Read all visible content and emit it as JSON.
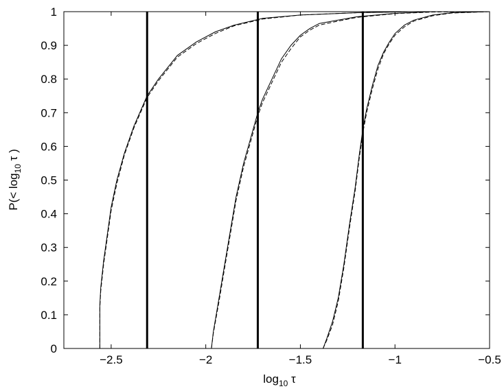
{
  "chart_data": {
    "type": "line",
    "title": "",
    "xlabel": {
      "base": "log",
      "sub": "10",
      "sym": " τ"
    },
    "ylabel": {
      "pre": "P(< log",
      "sub": "10",
      "post": " τ )"
    },
    "xlim": [
      -2.75,
      -0.5
    ],
    "ylim": [
      0,
      1
    ],
    "x_ticks": [
      -2.5,
      -2,
      -1.5,
      -1,
      -0.5
    ],
    "x_tick_labels": [
      "−2.5",
      "−2",
      "−1.5",
      "−1",
      "−0.5"
    ],
    "y_ticks": [
      0,
      0.1,
      0.2,
      0.3,
      0.4,
      0.5,
      0.6,
      0.7,
      0.8,
      0.9,
      1
    ],
    "y_tick_labels": [
      "0",
      "0.1",
      "0.2",
      "0.3",
      "0.4",
      "0.5",
      "0.6",
      "0.7",
      "0.8",
      "0.9",
      "1"
    ],
    "grid": false,
    "vertical_lines": [
      -2.31,
      -1.725,
      -1.17
    ],
    "series": [
      {
        "style": "solid",
        "x": [
          -2.56,
          -2.56,
          -2.555,
          -2.54,
          -2.52,
          -2.5,
          -2.47,
          -2.43,
          -2.38,
          -2.31,
          -2.25,
          -2.15,
          -2.05,
          -1.95,
          -1.85,
          -1.7,
          -1.5,
          -1.2,
          -0.9,
          -0.5
        ],
        "y": [
          0,
          0.13,
          0.18,
          0.26,
          0.34,
          0.42,
          0.5,
          0.58,
          0.66,
          0.75,
          0.8,
          0.87,
          0.91,
          0.94,
          0.96,
          0.98,
          0.99,
          0.997,
          1,
          1
        ]
      },
      {
        "style": "dashed",
        "x": [
          -2.56,
          -2.56,
          -2.555,
          -2.54,
          -2.52,
          -2.5,
          -2.47,
          -2.43,
          -2.38,
          -2.31,
          -2.25,
          -2.15,
          -2.05,
          -1.95,
          -1.85,
          -1.7,
          -1.5,
          -1.2,
          -0.9,
          -0.5
        ],
        "y": [
          0,
          0.12,
          0.17,
          0.25,
          0.33,
          0.41,
          0.49,
          0.575,
          0.655,
          0.745,
          0.795,
          0.865,
          0.905,
          0.935,
          0.958,
          0.978,
          0.99,
          0.997,
          1,
          1
        ]
      },
      {
        "style": "solid",
        "x": [
          -1.97,
          -1.96,
          -1.93,
          -1.9,
          -1.87,
          -1.84,
          -1.8,
          -1.76,
          -1.725,
          -1.7,
          -1.65,
          -1.6,
          -1.55,
          -1.5,
          -1.45,
          -1.4,
          -1.3,
          -1.2,
          -1.0,
          -0.8,
          -0.5
        ],
        "y": [
          0,
          0.05,
          0.15,
          0.25,
          0.35,
          0.45,
          0.55,
          0.63,
          0.7,
          0.74,
          0.8,
          0.86,
          0.9,
          0.93,
          0.95,
          0.965,
          0.975,
          0.985,
          0.995,
          1,
          1
        ]
      },
      {
        "style": "dashed",
        "x": [
          -1.97,
          -1.96,
          -1.93,
          -1.9,
          -1.87,
          -1.84,
          -1.8,
          -1.76,
          -1.725,
          -1.7,
          -1.65,
          -1.6,
          -1.55,
          -1.5,
          -1.45,
          -1.4,
          -1.3,
          -1.2,
          -1.0,
          -0.8,
          -0.5
        ],
        "y": [
          0,
          0.045,
          0.14,
          0.24,
          0.34,
          0.44,
          0.54,
          0.62,
          0.69,
          0.73,
          0.79,
          0.85,
          0.89,
          0.925,
          0.945,
          0.96,
          0.972,
          0.983,
          0.994,
          0.999,
          1
        ]
      },
      {
        "style": "solid",
        "x": [
          -1.38,
          -1.36,
          -1.33,
          -1.3,
          -1.27,
          -1.24,
          -1.21,
          -1.19,
          -1.17,
          -1.15,
          -1.12,
          -1.09,
          -1.06,
          -1.03,
          -1.0,
          -0.95,
          -0.9,
          -0.8,
          -0.7,
          -0.5
        ],
        "y": [
          0,
          0.03,
          0.08,
          0.15,
          0.25,
          0.37,
          0.48,
          0.57,
          0.65,
          0.71,
          0.78,
          0.84,
          0.88,
          0.91,
          0.935,
          0.96,
          0.975,
          0.99,
          0.997,
          1
        ]
      },
      {
        "style": "dashed",
        "x": [
          -1.38,
          -1.36,
          -1.33,
          -1.3,
          -1.27,
          -1.24,
          -1.21,
          -1.19,
          -1.17,
          -1.15,
          -1.12,
          -1.09,
          -1.06,
          -1.03,
          -1.0,
          -0.95,
          -0.9,
          -0.8,
          -0.7,
          -0.5
        ],
        "y": [
          0,
          0.025,
          0.07,
          0.14,
          0.24,
          0.36,
          0.47,
          0.56,
          0.64,
          0.7,
          0.77,
          0.83,
          0.875,
          0.905,
          0.93,
          0.955,
          0.972,
          0.988,
          0.996,
          1
        ]
      }
    ]
  }
}
